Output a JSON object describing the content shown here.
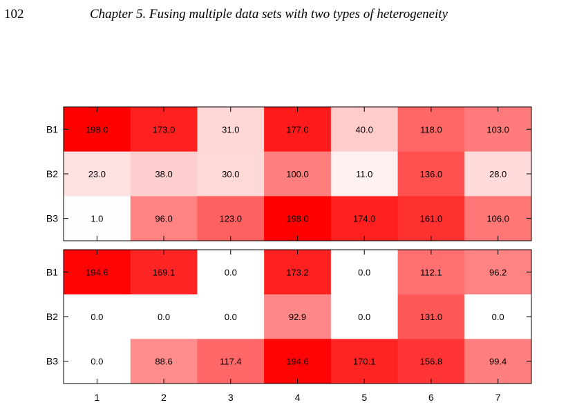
{
  "header": {
    "page_number": "102",
    "running_title": "Chapter 5.  Fusing multiple data sets with two types of heterogeneity"
  },
  "chart_data": {
    "type": "heatmap",
    "colormap": {
      "low": "#ffffff",
      "high": "#ff0000",
      "vmin": 0,
      "vmax": 198
    },
    "panels": [
      {
        "rows": [
          "B1",
          "B2",
          "B3"
        ],
        "columns": [
          "1",
          "2",
          "3",
          "4",
          "5",
          "6",
          "7"
        ],
        "values": [
          [
            198.0,
            173.0,
            31.0,
            177.0,
            40.0,
            118.0,
            103.0
          ],
          [
            23.0,
            38.0,
            30.0,
            100.0,
            11.0,
            136.0,
            28.0
          ],
          [
            1.0,
            96.0,
            123.0,
            198.0,
            174.0,
            161.0,
            106.0
          ]
        ],
        "labels": [
          [
            "198.0",
            "173.0",
            "31.0",
            "177.0",
            "40.0",
            "118.0",
            "103.0"
          ],
          [
            "23.0",
            "38.0",
            "30.0",
            "100.0",
            "11.0",
            "136.0",
            "28.0"
          ],
          [
            "1.0",
            "96.0",
            "123.0",
            "198.0",
            "174.0",
            "161.0",
            "106.0"
          ]
        ]
      },
      {
        "rows": [
          "B1",
          "B2",
          "B3"
        ],
        "columns": [
          "1",
          "2",
          "3",
          "4",
          "5",
          "6",
          "7"
        ],
        "values": [
          [
            194.6,
            169.1,
            0.0,
            173.2,
            0.0,
            112.1,
            96.2
          ],
          [
            0.0,
            0.0,
            0.0,
            92.9,
            0.0,
            131.0,
            0.0
          ],
          [
            0.0,
            88.6,
            117.4,
            194.6,
            170.1,
            156.8,
            99.4
          ]
        ],
        "labels": [
          [
            "194.6",
            "169.1",
            "0.0",
            "173.2",
            "0.0",
            "112.1",
            "96.2"
          ],
          [
            "0.0",
            "0.0",
            "0.0",
            "92.9",
            "0.0",
            "131.0",
            "0.0"
          ],
          [
            "0.0",
            "88.6",
            "117.4",
            "194.6",
            "170.1",
            "156.8",
            "99.4"
          ]
        ]
      }
    ],
    "x_ticks": [
      "1",
      "2",
      "3",
      "4",
      "5",
      "6",
      "7"
    ]
  }
}
